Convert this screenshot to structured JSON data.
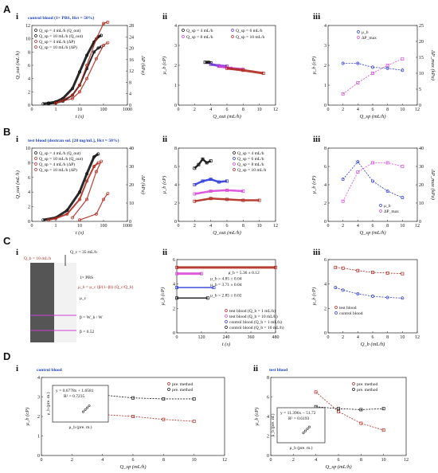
{
  "panel_labels": {
    "A": "A",
    "B": "B",
    "C": "C",
    "D": "D",
    "i": "i",
    "ii": "ii",
    "iii": "iii"
  },
  "captions": {
    "A": "control blood (1× PBS, Hct = 50%)",
    "B": "test blood (dextran sol. [20 mg/mL], Hct = 50%)",
    "D_i": "control blood",
    "D_ii": "test blood"
  },
  "colors": {
    "q4": "#111111",
    "q10": "#111111",
    "q4dp": "#b02a1f",
    "q10dp": "#b02a1f",
    "q6": "#6a32d6",
    "q8": "#d040d8",
    "blue": "#2b3ad8",
    "magenta": "#d84ad8",
    "red": "#b02a1f"
  },
  "chart_data": [
    {
      "id": "Ai",
      "type": "line",
      "xlabel": "t (s)",
      "ylabel": "Q_out (mL/h)",
      "y2label": "ΔP (kPa)",
      "x_scale": "log",
      "xlim": [
        0.1,
        1000
      ],
      "ylim": [
        0,
        12
      ],
      "y2lim": [
        0,
        28
      ],
      "x_ticks": [
        "0",
        "1",
        "10",
        "100",
        "1000"
      ],
      "y_ticks": [
        "0",
        "2",
        "4",
        "6",
        "8",
        "10",
        "12"
      ],
      "y2_ticks": [
        "0",
        "4",
        "8",
        "12",
        "16",
        "20",
        "24",
        "28"
      ],
      "legend": [
        "Q_sp = 4 mL/h (Q_out)",
        "Q_sp = 10 mL/h (Q_out)",
        "Q_sp = 4 mL/h (ΔP)",
        "Q_sp = 10 mL/h (ΔP)"
      ],
      "series": [
        {
          "name": "Q_sp = 10 mL/h (Q_out)",
          "x": [
            0.3,
            0.5,
            1,
            2,
            5,
            10,
            20,
            40,
            60,
            80
          ],
          "y": [
            0.2,
            0.3,
            0.5,
            1,
            2.5,
            5,
            7.5,
            9.5,
            10.3,
            10.5
          ]
        },
        {
          "name": "Q_sp = 4 mL/h (Q_out)",
          "x": [
            0.5,
            1,
            2,
            5,
            10,
            20,
            40,
            60,
            80
          ],
          "y": [
            0.2,
            0.3,
            0.6,
            1.5,
            3,
            5.5,
            8,
            8.6,
            8.8
          ]
        },
        {
          "name": "Q_sp = 4 mL/h (ΔP)",
          "x": [
            1,
            5,
            10,
            20,
            50,
            100,
            150
          ],
          "y": [
            0.3,
            1,
            2,
            4,
            7,
            9,
            9.4
          ]
        },
        {
          "name": "Q_sp = 10 mL/h (ΔP)",
          "x": [
            1,
            5,
            10,
            20,
            50,
            100,
            150
          ],
          "y": [
            0.3,
            1.5,
            3,
            6,
            10,
            12.3,
            12.5
          ]
        }
      ]
    },
    {
      "id": "Aii",
      "type": "scatter",
      "xlabel": "Q_out (mL/h)",
      "ylabel": "μ_b (cP)",
      "xlim": [
        0,
        12
      ],
      "ylim": [
        0,
        4
      ],
      "x_ticks": [
        "0",
        "2",
        "4",
        "6",
        "8",
        "10",
        "12"
      ],
      "y_ticks": [
        "0",
        "1",
        "2",
        "3",
        "4"
      ],
      "legend": [
        "Q_sp = 4 mL/h",
        "Q_sp = 6 mL/h",
        "Q_sp = 8 mL/h",
        "Q_sp = 10 mL/h"
      ],
      "series": [
        {
          "name": "Q_sp = 4 mL/h",
          "x": [
            3.3,
            3.7,
            4.0
          ],
          "y": [
            2.15,
            2.15,
            2.12
          ]
        },
        {
          "name": "Q_sp = 6 mL/h",
          "x": [
            4.0,
            5.0,
            6.0
          ],
          "y": [
            2.05,
            1.98,
            1.95
          ]
        },
        {
          "name": "Q_sp = 8 mL/h",
          "x": [
            5.0,
            6.5,
            8.0
          ],
          "y": [
            1.95,
            1.85,
            1.8
          ]
        },
        {
          "name": "Q_sp = 10 mL/h",
          "x": [
            6.0,
            8.0,
            10.5
          ],
          "y": [
            1.85,
            1.75,
            1.6
          ]
        }
      ]
    },
    {
      "id": "Aiii",
      "type": "line",
      "xlabel": "Q_sp (mL/h)",
      "ylabel": "μ_b (cP)",
      "y2label": "ΔP_max (kPa)",
      "xlim": [
        0,
        12
      ],
      "ylim": [
        0,
        4
      ],
      "y2lim": [
        0,
        25
      ],
      "x_ticks": [
        "0",
        "2",
        "4",
        "6",
        "8",
        "10",
        "12"
      ],
      "y_ticks": [
        "0",
        "1",
        "2",
        "3",
        "4"
      ],
      "y2_ticks": [
        "0",
        "5",
        "10",
        "15",
        "20",
        "25"
      ],
      "legend": [
        "μ_b",
        "ΔP_max"
      ],
      "series": [
        {
          "name": "μ_b",
          "x": [
            2,
            4,
            6,
            8,
            10
          ],
          "y": [
            2.1,
            2.1,
            1.9,
            1.85,
            1.75
          ]
        },
        {
          "name": "ΔP_max",
          "x": [
            2,
            4,
            6,
            8,
            10
          ],
          "y2": [
            3.5,
            7,
            10,
            12.5,
            14.5
          ]
        }
      ]
    },
    {
      "id": "Bi",
      "type": "line",
      "xlabel": "t (s)",
      "ylabel": "Q_out (mL/h)",
      "y2label": "ΔP (kPa)",
      "x_scale": "log",
      "xlim": [
        0.1,
        1000
      ],
      "ylim": [
        0,
        10
      ],
      "y2lim": [
        0,
        40
      ],
      "x_ticks": [
        "0",
        "1",
        "10",
        "100",
        "1000"
      ],
      "y_ticks": [
        "0",
        "2",
        "4",
        "6",
        "8",
        "10"
      ],
      "y2_ticks": [
        "0",
        "10",
        "20",
        "30",
        "40"
      ],
      "legend": [
        "Q_sp = 4 mL/h (Q_out)",
        "Q_sp = 10 mL/h (Q_out)",
        "Q_sp = 4 mL/h (ΔP)",
        "Q_sp = 10 mL/h (ΔP)"
      ],
      "series": [
        {
          "name": "Q_sp = 10 mL/h (Q_out)",
          "x": [
            0.3,
            1,
            3,
            10,
            20,
            40,
            60
          ],
          "y": [
            0.2,
            0.5,
            1.5,
            4,
            6.5,
            8.8,
            9.2
          ]
        },
        {
          "name": "Q_sp = 4 mL/h (Q_out)",
          "x": [
            0.5,
            1,
            3,
            10,
            20,
            40,
            60
          ],
          "y": [
            0.2,
            0.4,
            1,
            3,
            5.5,
            7.5,
            8
          ]
        },
        {
          "name": "Q_sp = 4 mL/h (ΔP)",
          "x": [
            10,
            50,
            100,
            150
          ],
          "y": [
            0.2,
            1,
            3,
            3.8
          ]
        },
        {
          "name": "Q_sp = 10 mL/h (ΔP)",
          "x": [
            5,
            20,
            50,
            80
          ],
          "y": [
            0.5,
            3,
            6.8,
            8.2
          ]
        }
      ]
    },
    {
      "id": "Bii",
      "type": "scatter",
      "xlabel": "Q_out (mL/h)",
      "ylabel": "μ_b (cP)",
      "xlim": [
        0,
        12
      ],
      "ylim": [
        0,
        8
      ],
      "x_ticks": [
        "0",
        "2",
        "4",
        "6",
        "8",
        "10",
        "12"
      ],
      "y_ticks": [
        "0",
        "2",
        "4",
        "6",
        "8"
      ],
      "legend": [
        "Q_sp = 4 mL/h",
        "Q_sp = 6 mL/h",
        "Q_sp = 8 mL/h",
        "Q_sp = 10 mL/h"
      ],
      "series": [
        {
          "name": "Q_sp = 4 mL/h",
          "x": [
            2.0,
            2.5,
            3.0,
            3.5,
            4.0
          ],
          "y": [
            5.8,
            6.2,
            6.8,
            6.4,
            6.6
          ]
        },
        {
          "name": "Q_sp = 6 mL/h",
          "x": [
            2.0,
            3.0,
            4.0,
            5.0,
            6.0
          ],
          "y": [
            4.0,
            4.4,
            4.6,
            4.3,
            4.4
          ]
        },
        {
          "name": "Q_sp = 8 mL/h",
          "x": [
            2.0,
            4.0,
            6.0,
            8.0
          ],
          "y": [
            3.0,
            3.3,
            3.4,
            3.3
          ]
        },
        {
          "name": "Q_sp = 10 mL/h",
          "x": [
            2.0,
            4.0,
            6.0,
            8.0,
            10.0
          ],
          "y": [
            2.2,
            2.5,
            2.4,
            2.3,
            2.3
          ]
        }
      ]
    },
    {
      "id": "Biii",
      "type": "line",
      "xlabel": "Q_sp (mL/h)",
      "ylabel": "μ_b (cP)",
      "y2label": "ΔP_max (kPa)",
      "xlim": [
        0,
        12
      ],
      "ylim": [
        0,
        8
      ],
      "y2lim": [
        0,
        40
      ],
      "x_ticks": [
        "0",
        "2",
        "4",
        "6",
        "8",
        "10",
        "12"
      ],
      "y_ticks": [
        "0",
        "2",
        "4",
        "6",
        "8"
      ],
      "y2_ticks": [
        "0",
        "10",
        "20",
        "30",
        "40"
      ],
      "legend": [
        "μ_b",
        "ΔP_max"
      ],
      "series": [
        {
          "name": "μ_b",
          "x": [
            2,
            4,
            6,
            8,
            10
          ],
          "y": [
            4.6,
            6.5,
            4.4,
            3.3,
            2.6
          ]
        },
        {
          "name": "ΔP_max",
          "x": [
            2,
            4,
            6,
            8,
            10
          ],
          "y2": [
            11,
            27,
            32,
            32,
            30
          ]
        }
      ]
    },
    {
      "id": "Cii",
      "type": "scatter",
      "xlabel": "t (s)",
      "ylabel": "μ_b (cP)",
      "xlim": [
        0,
        480
      ],
      "ylim": [
        0,
        6
      ],
      "x_ticks": [
        "0",
        "120",
        "240",
        "360",
        "480"
      ],
      "y_ticks": [
        "0",
        "2",
        "4",
        "6"
      ],
      "annotations": [
        "μ_b = 5.36 ± 0.12",
        "μ_b = 4.85 ± 0.04",
        "μ_b = 3.71 ± 0.04",
        "μ_b = 2.85 ± 0.02"
      ],
      "legend": [
        "test blood (Q_b = 1 mL/h)",
        "test blood (Q_b = 10 mL/h)",
        "control blood (Q_b = 1 mL/h)",
        "control blood (Q_b = 10 mL/h)"
      ],
      "series": [
        {
          "name": "test blood (Q_b = 1 mL/h)",
          "x": [
            0,
            480
          ],
          "y": [
            5.36,
            5.36
          ]
        },
        {
          "name": "test blood (Q_b = 10 mL/h)",
          "x": [
            0,
            120
          ],
          "y": [
            4.85,
            4.85
          ]
        },
        {
          "name": "control blood (Q_b = 1 mL/h)",
          "x": [
            0,
            180
          ],
          "y": [
            3.71,
            3.71
          ]
        },
        {
          "name": "control blood (Q_b = 10 mL/h)",
          "x": [
            0,
            150
          ],
          "y": [
            2.85,
            2.85
          ]
        }
      ]
    },
    {
      "id": "Ciii",
      "type": "line",
      "xlabel": "Q_b (mL/h)",
      "ylabel": "μ_b (cP)",
      "xlim": [
        0,
        12
      ],
      "ylim": [
        0,
        6
      ],
      "x_ticks": [
        "0",
        "2",
        "4",
        "6",
        "8",
        "10",
        "12"
      ],
      "y_ticks": [
        "0",
        "2",
        "4",
        "6"
      ],
      "legend": [
        "test blood",
        "control blood"
      ],
      "series": [
        {
          "name": "test blood",
          "x": [
            1,
            2,
            4,
            6,
            8,
            10
          ],
          "y": [
            5.36,
            5.3,
            5.1,
            4.95,
            4.9,
            4.85
          ]
        },
        {
          "name": "control blood",
          "x": [
            1,
            2,
            4,
            6,
            8,
            10
          ],
          "y": [
            3.71,
            3.5,
            3.2,
            3.0,
            2.9,
            2.85
          ]
        }
      ]
    },
    {
      "id": "Di",
      "type": "line",
      "xlabel": "Q_sp (mL/h)",
      "ylabel": "μ_b (cP)",
      "xlim": [
        0,
        12
      ],
      "ylim": [
        0,
        4
      ],
      "x_ticks": [
        "0",
        "2",
        "4",
        "6",
        "8",
        "10",
        "12"
      ],
      "y_ticks": [
        "0",
        "1",
        "2",
        "3",
        "4"
      ],
      "legend": [
        "pre. method",
        "pre. method"
      ],
      "inset": {
        "xlabel": "μ_b (pre. m.)",
        "ylabel": "μ_b (pre. m.)",
        "fit": "y = 0.6778x + 1.6581",
        "r2": "R² = 0.7235"
      },
      "series": [
        {
          "name": "pre. method (red)",
          "x": [
            4,
            6,
            8,
            10
          ],
          "y": [
            2.1,
            2.0,
            1.85,
            1.75
          ]
        },
        {
          "name": "pre. method (black)",
          "x": [
            4,
            6,
            8,
            10
          ],
          "y": [
            3.1,
            2.95,
            2.9,
            2.9
          ]
        }
      ]
    },
    {
      "id": "Dii",
      "type": "line",
      "xlabel": "Q_sp (mL/h)",
      "ylabel": "μ_b (cP)",
      "xlim": [
        0,
        12
      ],
      "ylim": [
        0,
        8
      ],
      "x_ticks": [
        "0",
        "2",
        "4",
        "6",
        "8",
        "10",
        "12"
      ],
      "y_ticks": [
        "0",
        "2",
        "4",
        "6",
        "8"
      ],
      "legend": [
        "pre. method",
        "pre. method"
      ],
      "inset": {
        "xlabel": "μ_b (pre. m.)",
        "ylabel": "μ_b (pre. m.)",
        "fit": "y = 11.396x − 51.72",
        "r2": "R² = 0.6193"
      },
      "series": [
        {
          "name": "pre. method (red)",
          "x": [
            4,
            6,
            8,
            10
          ],
          "y": [
            6.5,
            4.5,
            3.3,
            2.6
          ]
        },
        {
          "name": "pre. method (black)",
          "x": [
            4,
            6,
            8,
            10
          ],
          "y": [
            5.0,
            4.8,
            4.7,
            4.8
          ]
        }
      ]
    }
  ],
  "schematic": {
    "qb_label": "Q_b = 10 mL/h",
    "qc_label": "Q_c = 35 mL/h",
    "pbs_label": "1× PBS",
    "mu_label": "μ_c",
    "formula": "μ_b = μ_c (β/(1−β)) (Q_c/Q_b)",
    "beta_def": "β = W_b / W",
    "beta_val": "β = 0.52"
  }
}
